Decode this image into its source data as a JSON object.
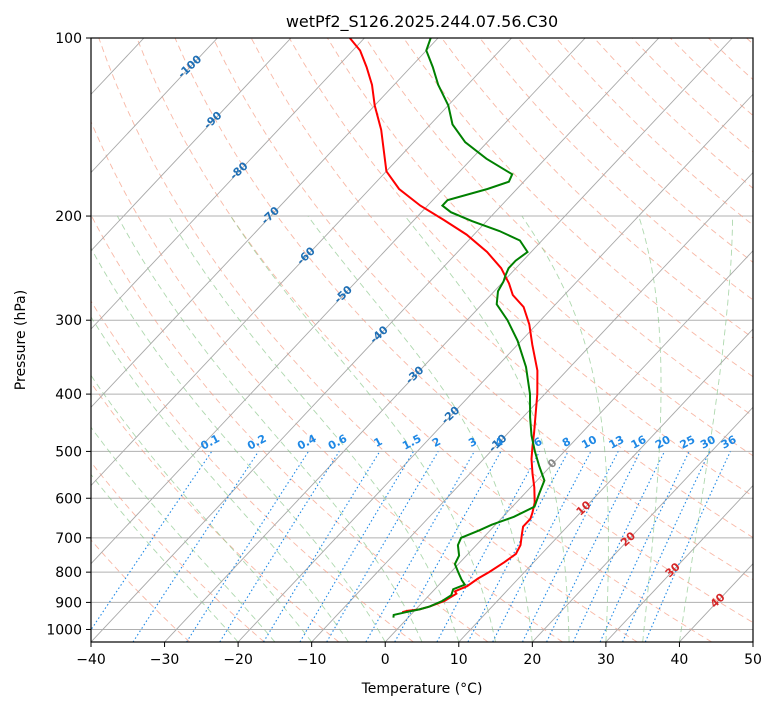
{
  "chart_data": {
    "type": "skew-t",
    "title": "wetPf2_S126.2025.244.07.56.C30",
    "xlabel": "Temperature (°C)",
    "ylabel": "Pressure (hPa)",
    "xlim": [
      -40,
      50
    ],
    "ylim": [
      1050,
      100
    ],
    "x_ticks": [
      -40,
      -30,
      -20,
      -10,
      0,
      10,
      20,
      30,
      40,
      50
    ],
    "x_tick_labels": [
      "−40",
      "−30",
      "−20",
      "−10",
      "0",
      "10",
      "20",
      "30",
      "40",
      "50"
    ],
    "y_ticks": [
      1000,
      900,
      800,
      700,
      600,
      500,
      400,
      300,
      200,
      100
    ],
    "y_tick_labels": [
      "1000",
      "900",
      "800",
      "700",
      "600",
      "500",
      "400",
      "300",
      "200",
      "100"
    ],
    "isotherm_labels_blue": [
      {
        "t": -100,
        "p": 112
      },
      {
        "t": -90,
        "p": 138
      },
      {
        "t": -80,
        "p": 168
      },
      {
        "t": -70,
        "p": 200
      },
      {
        "t": -60,
        "p": 234
      },
      {
        "t": -50,
        "p": 272
      },
      {
        "t": -40,
        "p": 318
      },
      {
        "t": -30,
        "p": 372
      },
      {
        "t": -20,
        "p": 435
      },
      {
        "t": -10,
        "p": 485
      }
    ],
    "isotherm_labels_red": [
      {
        "t": 0,
        "p": 525
      },
      {
        "t": 10,
        "p": 625
      },
      {
        "t": 20,
        "p": 705
      },
      {
        "t": 30,
        "p": 795
      },
      {
        "t": 40,
        "p": 895
      }
    ],
    "mixing_ratio_labels": [
      "0.1",
      "0.2",
      "0.4",
      "0.6",
      "1",
      "1.5",
      "2",
      "3",
      "4",
      "6",
      "8",
      "10",
      "13",
      "16",
      "20",
      "25",
      "30",
      "36"
    ],
    "series": [
      {
        "name": "Temperature",
        "color": "#ff0000",
        "points": [
          [
            -1.5,
            935
          ],
          [
            -1.0,
            930
          ],
          [
            0.5,
            925
          ],
          [
            1.5,
            915
          ],
          [
            2.8,
            895
          ],
          [
            3.5,
            870
          ],
          [
            3.0,
            862
          ],
          [
            4.0,
            845
          ],
          [
            4.5,
            820
          ],
          [
            5.2,
            800
          ],
          [
            6.0,
            770
          ],
          [
            6.5,
            745
          ],
          [
            6.0,
            720
          ],
          [
            4.8,
            690
          ],
          [
            4.0,
            670
          ],
          [
            4.0,
            650
          ],
          [
            3.5,
            635
          ],
          [
            2.5,
            610
          ],
          [
            0.5,
            575
          ],
          [
            -1.5,
            545
          ],
          [
            -3.5,
            515
          ],
          [
            -5.0,
            490
          ],
          [
            -6.5,
            465
          ],
          [
            -8.5,
            435
          ],
          [
            -11.0,
            400
          ],
          [
            -14.0,
            365
          ],
          [
            -18.0,
            330
          ],
          [
            -21.0,
            305
          ],
          [
            -24.0,
            285
          ],
          [
            -27.0,
            272
          ],
          [
            -29.0,
            260
          ],
          [
            -32.0,
            245
          ],
          [
            -36.0,
            230
          ],
          [
            -41.0,
            215
          ],
          [
            -46.0,
            203
          ],
          [
            -51.0,
            192
          ],
          [
            -56.0,
            180
          ],
          [
            -60.0,
            168
          ],
          [
            -63.0,
            155
          ],
          [
            -66.0,
            143
          ],
          [
            -70.0,
            130
          ],
          [
            -73.0,
            120
          ],
          [
            -76.0,
            112
          ],
          [
            -79.0,
            105
          ],
          [
            -82.0,
            100
          ]
        ]
      },
      {
        "name": "Dewpoint",
        "color": "#008000",
        "points": [
          [
            -2.0,
            955
          ],
          [
            -2.3,
            945
          ],
          [
            -1.0,
            935
          ],
          [
            0.5,
            925
          ],
          [
            1.5,
            915
          ],
          [
            2.5,
            895
          ],
          [
            3.0,
            875
          ],
          [
            2.5,
            855
          ],
          [
            3.5,
            840
          ],
          [
            2.5,
            825
          ],
          [
            1.0,
            800
          ],
          [
            -0.5,
            775
          ],
          [
            -1.0,
            750
          ],
          [
            -2.5,
            720
          ],
          [
            -3.0,
            700
          ],
          [
            -1.5,
            680
          ],
          [
            -0.5,
            665
          ],
          [
            1.5,
            645
          ],
          [
            3.0,
            620
          ],
          [
            2.0,
            590
          ],
          [
            1.0,
            560
          ],
          [
            -1.5,
            530
          ],
          [
            -4.0,
            500
          ],
          [
            -6.5,
            470
          ],
          [
            -9.0,
            438
          ],
          [
            -12.0,
            400
          ],
          [
            -16.0,
            360
          ],
          [
            -20.5,
            325
          ],
          [
            -24.5,
            300
          ],
          [
            -28.0,
            282
          ],
          [
            -29.5,
            268
          ],
          [
            -30.0,
            258
          ],
          [
            -30.5,
            252
          ],
          [
            -31.0,
            245
          ],
          [
            -31.0,
            238
          ],
          [
            -30.5,
            230
          ],
          [
            -33.0,
            220
          ],
          [
            -37.0,
            212
          ],
          [
            -42.0,
            204
          ],
          [
            -46.0,
            197
          ],
          [
            -48.0,
            192
          ],
          [
            -48.0,
            188
          ],
          [
            -44.0,
            180
          ],
          [
            -42.0,
            175
          ],
          [
            -42.5,
            170
          ],
          [
            -48.0,
            160
          ],
          [
            -53.0,
            150
          ],
          [
            -57.0,
            140
          ],
          [
            -60.0,
            130
          ],
          [
            -64.0,
            120
          ],
          [
            -67.0,
            112
          ],
          [
            -70.0,
            105
          ],
          [
            -71.0,
            100
          ]
        ]
      }
    ]
  }
}
